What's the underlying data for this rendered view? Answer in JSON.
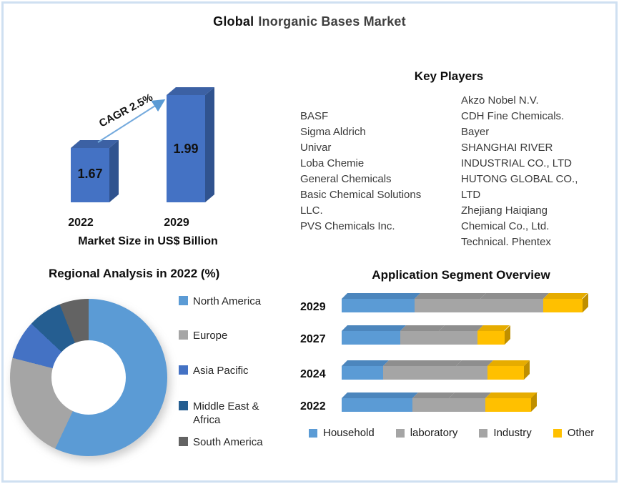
{
  "title": {
    "prefix": "Global",
    "rest": "Inorganic Bases Market"
  },
  "key_players": {
    "heading": "Key Players",
    "column_left_lines": [
      "BASF",
      "Sigma Aldrich",
      "Univar",
      "Loba Chemie",
      "General Chemicals",
      "Basic Chemical Solutions",
      "LLC.",
      "PVS Chemicals Inc."
    ],
    "column_right_lines": [
      "Akzo Nobel N.V.",
      "CDH Fine Chemicals.",
      "Bayer",
      "SHANGHAI RIVER",
      "INDUSTRIAL CO., LTD",
      "HUTONG GLOBAL CO.,",
      "LTD",
      "Zhejiang Haiqiang",
      "Chemical Co., Ltd.",
      "Technical. Phentex"
    ]
  },
  "colors": {
    "bar_blue": "#4472C4",
    "light_blue": "#5B9BD5",
    "gray": "#A5A5A5",
    "dark_blue": "#255E91",
    "dark_gray": "#636363",
    "yellow": "#FFC000",
    "border": "#CFE0F1"
  },
  "chart_data": [
    {
      "id": "market_size",
      "type": "bar",
      "title": "Market Size in US$ Billion",
      "annotation": "CAGR 2.5%",
      "categories": [
        "2022",
        "2029"
      ],
      "values": [
        1.67,
        1.99
      ],
      "bar_color": "#4472C4",
      "style": "3d"
    },
    {
      "id": "regional_2022",
      "type": "pie",
      "title": "Regional Analysis in 2022 (%)",
      "donut": true,
      "legend_position": "right",
      "labels": [
        "North America",
        "Europe",
        "Asia Pacific",
        "Middle East & Africa",
        "South America"
      ],
      "values": [
        57,
        22,
        8,
        7,
        6
      ],
      "colors": [
        "#5B9BD5",
        "#A5A5A5",
        "#4472C4",
        "#255E91",
        "#636363"
      ]
    },
    {
      "id": "application_segments",
      "type": "bar",
      "orientation": "horizontal",
      "stacked": true,
      "title": "Application Segment Overview",
      "categories": [
        "2029",
        "2027",
        "2024",
        "2022"
      ],
      "series": [
        {
          "name": "Household",
          "color": "#5B9BD5",
          "values": [
            30,
            24,
            17,
            29
          ]
        },
        {
          "name": "laboratory",
          "color": "#A5A5A5",
          "values": [
            27,
            16,
            30,
            15
          ]
        },
        {
          "name": "Industry",
          "color": "#A5A5A5",
          "values": [
            26,
            16,
            13,
            15
          ]
        },
        {
          "name": "Other",
          "color": "#FFC000",
          "values": [
            16,
            11,
            15,
            19
          ]
        }
      ],
      "legend_position": "bottom",
      "grid": false
    }
  ]
}
